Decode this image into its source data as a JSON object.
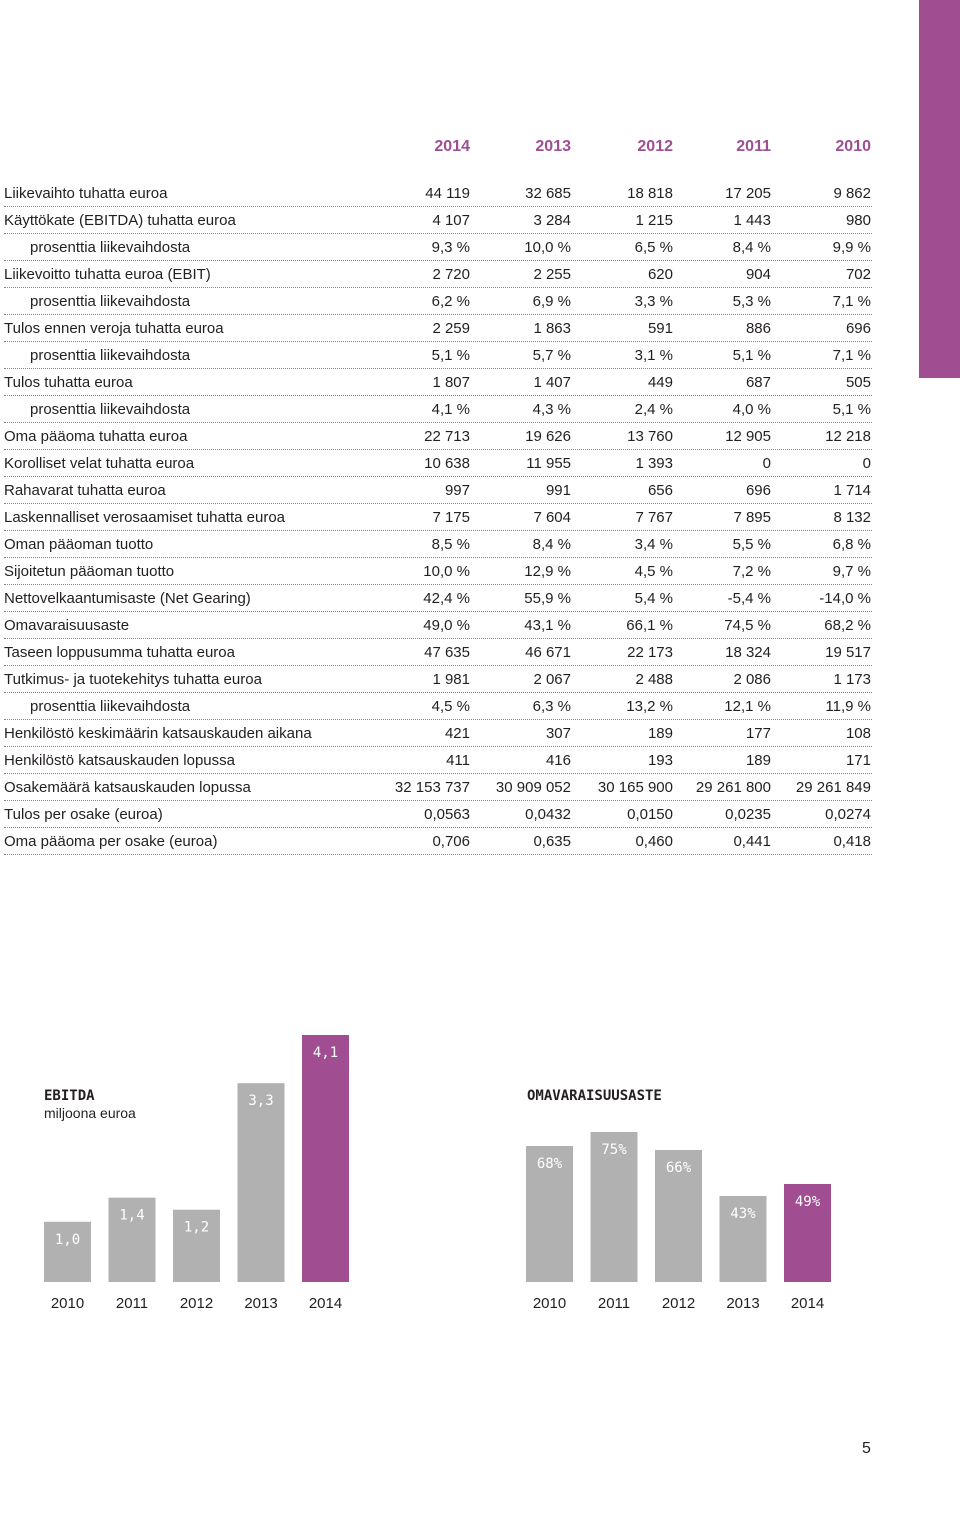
{
  "colors": {
    "accent": "#a04d91",
    "bar_gray": "#b1b1b1",
    "text": "#231f20"
  },
  "table": {
    "years": [
      "2014",
      "2013",
      "2012",
      "2011",
      "2010"
    ],
    "rows": [
      {
        "label": "Liikevaihto tuhatta euroa",
        "indent": false,
        "values": [
          "44 119",
          "32 685",
          "18 818",
          "17 205",
          "9 862"
        ]
      },
      {
        "label": "Käyttökate (EBITDA) tuhatta euroa",
        "indent": false,
        "values": [
          "4 107",
          "3 284",
          "1 215",
          "1 443",
          "980"
        ]
      },
      {
        "label": "prosenttia liikevaihdosta",
        "indent": true,
        "values": [
          "9,3 %",
          "10,0 %",
          "6,5 %",
          "8,4 %",
          "9,9 %"
        ]
      },
      {
        "label": "Liikevoitto tuhatta euroa (EBIT)",
        "indent": false,
        "values": [
          "2 720",
          "2 255",
          "620",
          "904",
          "702"
        ]
      },
      {
        "label": "prosenttia liikevaihdosta",
        "indent": true,
        "values": [
          "6,2 %",
          "6,9 %",
          "3,3 %",
          "5,3 %",
          "7,1 %"
        ]
      },
      {
        "label": "Tulos ennen veroja tuhatta euroa",
        "indent": false,
        "values": [
          "2 259",
          "1 863",
          "591",
          "886",
          "696"
        ]
      },
      {
        "label": "prosenttia liikevaihdosta",
        "indent": true,
        "values": [
          "5,1 %",
          "5,7 %",
          "3,1 %",
          "5,1 %",
          "7,1 %"
        ]
      },
      {
        "label": "Tulos tuhatta euroa",
        "indent": false,
        "values": [
          "1 807",
          "1 407",
          "449",
          "687",
          "505"
        ]
      },
      {
        "label": "prosenttia liikevaihdosta",
        "indent": true,
        "values": [
          "4,1 %",
          "4,3 %",
          "2,4 %",
          "4,0 %",
          "5,1 %"
        ]
      },
      {
        "label": "Oma pääoma tuhatta euroa",
        "indent": false,
        "values": [
          "22 713",
          "19 626",
          "13 760",
          "12 905",
          "12 218"
        ]
      },
      {
        "label": "Korolliset velat tuhatta euroa",
        "indent": false,
        "values": [
          "10 638",
          "11 955",
          "1 393",
          "0",
          "0"
        ]
      },
      {
        "label": "Rahavarat tuhatta euroa",
        "indent": false,
        "values": [
          "997",
          "991",
          "656",
          "696",
          "1 714"
        ]
      },
      {
        "label": "Laskennalliset verosaamiset tuhatta euroa",
        "indent": false,
        "values": [
          "7 175",
          "7 604",
          "7 767",
          "7 895",
          "8 132"
        ]
      },
      {
        "label": "Oman pääoman tuotto",
        "indent": false,
        "values": [
          "8,5 %",
          "8,4 %",
          "3,4 %",
          "5,5 %",
          "6,8 %"
        ]
      },
      {
        "label": "Sijoitetun pääoman tuotto",
        "indent": false,
        "values": [
          "10,0 %",
          "12,9 %",
          "4,5 %",
          "7,2 %",
          "9,7 %"
        ]
      },
      {
        "label": "Nettovelkaantumisaste (Net Gearing)",
        "indent": false,
        "values": [
          "42,4 %",
          "55,9 %",
          "5,4 %",
          "-5,4 %",
          "-14,0 %"
        ]
      },
      {
        "label": "Omavaraisuusaste",
        "indent": false,
        "values": [
          "49,0 %",
          "43,1 %",
          "66,1 %",
          "74,5 %",
          "68,2 %"
        ]
      },
      {
        "label": "Taseen loppusumma tuhatta euroa",
        "indent": false,
        "values": [
          "47 635",
          "46 671",
          "22 173",
          "18 324",
          "19 517"
        ]
      },
      {
        "label": "Tutkimus- ja tuotekehitys tuhatta euroa",
        "indent": false,
        "values": [
          "1 981",
          "2 067",
          "2 488",
          "2 086",
          "1 173"
        ]
      },
      {
        "label": "prosenttia liikevaihdosta",
        "indent": true,
        "values": [
          "4,5 %",
          "6,3 %",
          "13,2 %",
          "12,1 %",
          "11,9 %"
        ]
      },
      {
        "label": "Henkilöstö keskimäärin katsauskauden aikana",
        "indent": false,
        "values": [
          "421",
          "307",
          "189",
          "177",
          "108"
        ]
      },
      {
        "label": "Henkilöstö katsauskauden lopussa",
        "indent": false,
        "values": [
          "411",
          "416",
          "193",
          "189",
          "171"
        ]
      },
      {
        "label": "Osakemäärä katsauskauden lopussa",
        "indent": false,
        "values": [
          "32 153 737",
          "30 909 052",
          "30 165 900",
          "29 261 800",
          "29 261 849"
        ]
      },
      {
        "label": "Tulos per osake (euroa)",
        "indent": false,
        "values": [
          "0,0563",
          "0,0432",
          "0,0150",
          "0,0235",
          "0,0274"
        ]
      },
      {
        "label": "Oma pääoma per osake (euroa)",
        "indent": false,
        "values": [
          "0,706",
          "0,635",
          "0,460",
          "0,441",
          "0,418"
        ]
      }
    ]
  },
  "chart_data": [
    {
      "type": "bar",
      "title": "EBITDA",
      "subtitle": "miljoona euroa",
      "categories": [
        "2010",
        "2011",
        "2012",
        "2013",
        "2014"
      ],
      "values": [
        1.0,
        1.4,
        1.2,
        3.3,
        4.1
      ],
      "labels": [
        "1,0",
        "1,4",
        "1,2",
        "3,3",
        "4,1"
      ],
      "highlight_index": 4,
      "ylim": [
        0,
        4.1
      ]
    },
    {
      "type": "bar",
      "title": "OMAVARAISUUSASTE",
      "subtitle": "",
      "categories": [
        "2010",
        "2011",
        "2012",
        "2013",
        "2014"
      ],
      "values": [
        68,
        75,
        66,
        43,
        49
      ],
      "labels": [
        "68%",
        "75%",
        "66%",
        "43%",
        "49%"
      ],
      "highlight_index": 4,
      "ylim": [
        0,
        80
      ]
    }
  ],
  "page_number": "5"
}
